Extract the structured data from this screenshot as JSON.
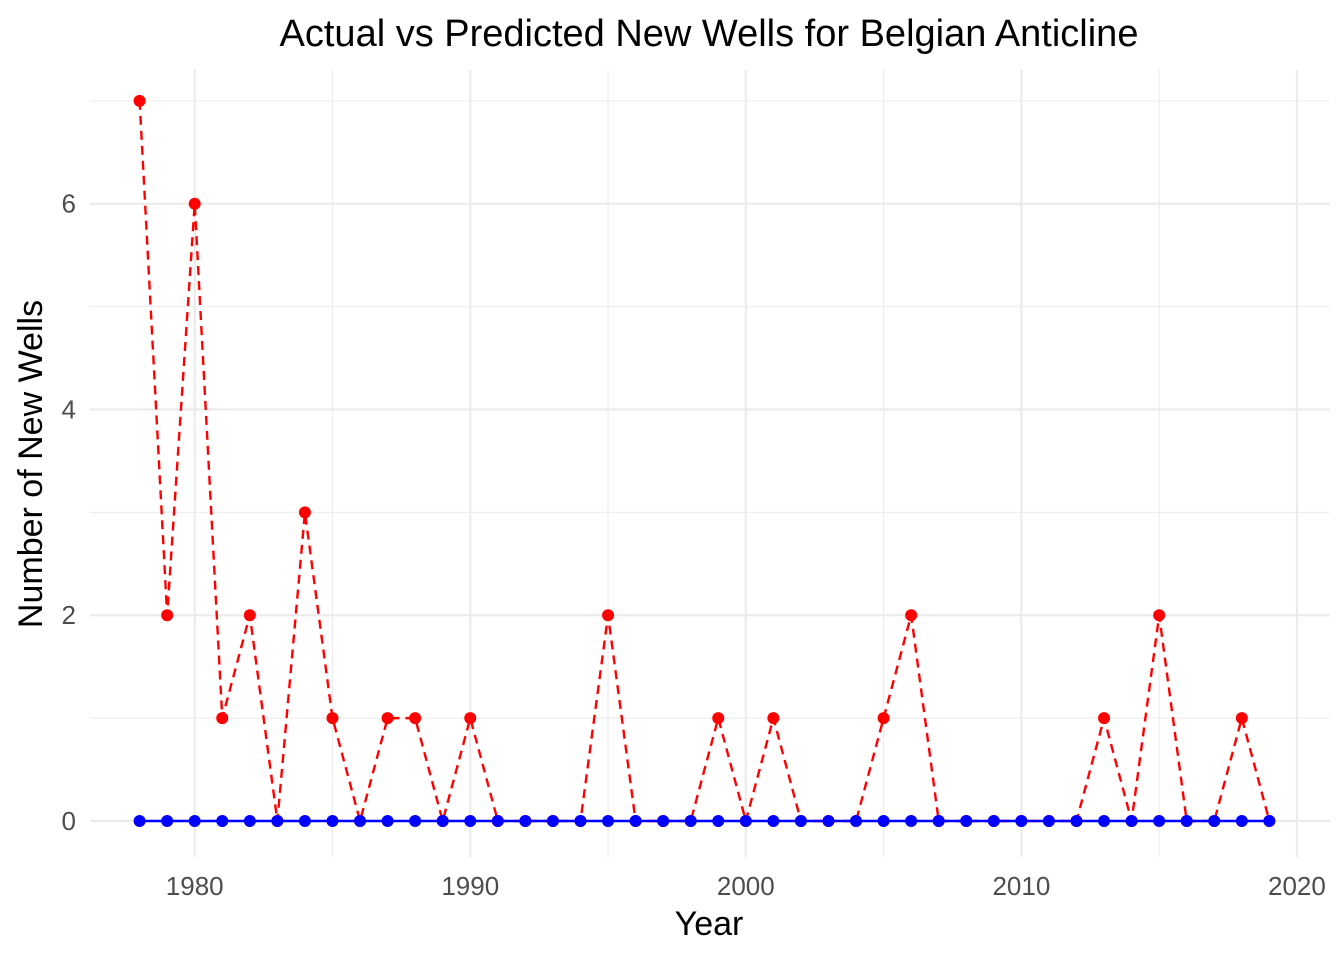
{
  "chart_data": {
    "type": "line",
    "title": "Actual vs Predicted New Wells for Belgian Anticline",
    "xlabel": "Year",
    "ylabel": "Number of New Wells",
    "xlim": [
      1976.2,
      2021.2
    ],
    "ylim": [
      -0.35,
      7.3
    ],
    "x_ticks": [
      1980,
      1990,
      2000,
      2010,
      2020
    ],
    "x_tick_labels": [
      "1980",
      "1990",
      "2000",
      "2010",
      "2020"
    ],
    "y_ticks": [
      0,
      2,
      4,
      6
    ],
    "y_tick_labels": [
      "0",
      "2",
      "4",
      "6"
    ],
    "grid": true,
    "legend": "none",
    "x": [
      1978,
      1979,
      1980,
      1981,
      1982,
      1983,
      1984,
      1985,
      1986,
      1987,
      1988,
      1989,
      1990,
      1991,
      1992,
      1993,
      1994,
      1995,
      1996,
      1997,
      1998,
      1999,
      2000,
      2001,
      2002,
      2003,
      2004,
      2005,
      2006,
      2007,
      2008,
      2009,
      2010,
      2011,
      2012,
      2013,
      2014,
      2015,
      2016,
      2017,
      2018,
      2019
    ],
    "series": [
      {
        "color": "#ff0000",
        "line_style": "dashed",
        "values": [
          7,
          2,
          6,
          1,
          2,
          0,
          3,
          1,
          0,
          1,
          1,
          0,
          1,
          0,
          0,
          0,
          0,
          2,
          0,
          0,
          0,
          1,
          0,
          1,
          0,
          0,
          0,
          1,
          2,
          0,
          0,
          0,
          0,
          0,
          0,
          1,
          0,
          2,
          0,
          0,
          1,
          0
        ]
      },
      {
        "color": "#0000ff",
        "line_style": "solid",
        "values": [
          0,
          0,
          0,
          0,
          0,
          0,
          0,
          0,
          0,
          0,
          0,
          0,
          0,
          0,
          0,
          0,
          0,
          0,
          0,
          0,
          0,
          0,
          0,
          0,
          0,
          0,
          0,
          0,
          0,
          0,
          0,
          0,
          0,
          0,
          0,
          0,
          0,
          0,
          0,
          0,
          0,
          0
        ]
      }
    ]
  }
}
